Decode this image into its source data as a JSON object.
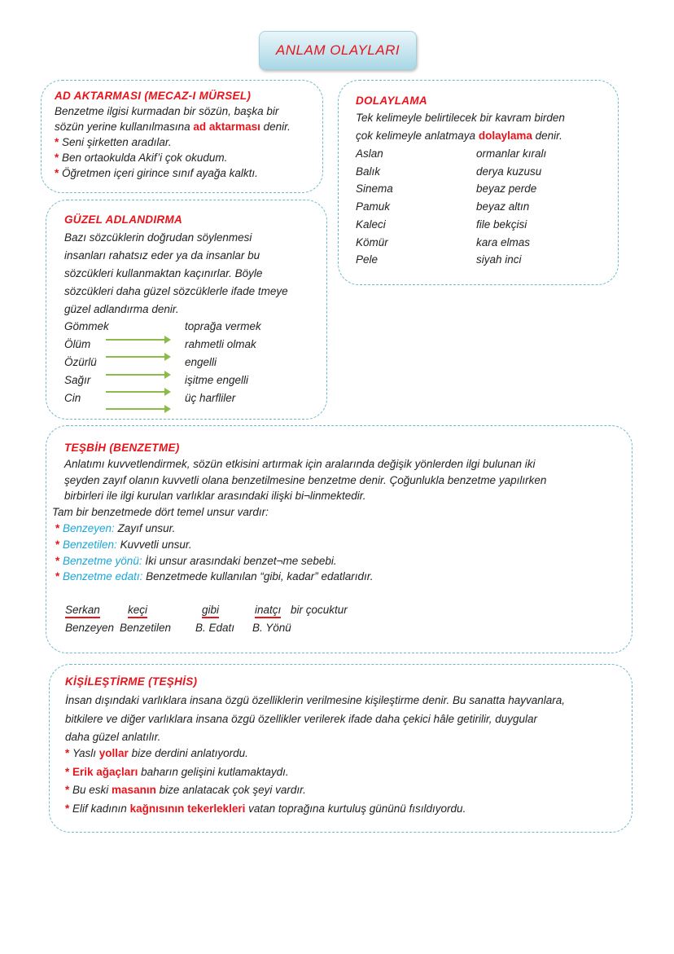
{
  "title": "ANLAM OLAYLARI",
  "ad_aktarmasi": {
    "heading": "AD AKTARMASI (MECAZ-I MÜRSEL)",
    "line1": "Benzetme ilgisi kurmadan bir sözün, başka bir",
    "line2_pre": "sözün yerine kullanılmasına ",
    "line2_hl": "ad aktarması",
    "line2_post": " denir.",
    "examples": [
      "Seni şirketten aradılar.",
      "Ben ortaokulda Akif’i çok okudum.",
      "Öğretmen içeri girince sınıf  ayağa kalktı."
    ]
  },
  "dolaylama": {
    "heading": "DOLAYLAMA",
    "line1": "Tek kelimeyle belirtilecek bir kavram birden",
    "line2_pre": "çok kelimeyle anlatmaya ",
    "line2_hl": "dolaylama",
    "line2_post": " denir.",
    "pairs": [
      [
        "Aslan",
        "ormanlar kıralı"
      ],
      [
        "Balık",
        "derya kuzusu"
      ],
      [
        "Sinema",
        "beyaz perde"
      ],
      [
        "Pamuk",
        "beyaz altın"
      ],
      [
        "Kaleci",
        "file bekçisi"
      ],
      [
        "Kömür",
        "kara elmas"
      ],
      [
        "Pele",
        "siyah inci"
      ]
    ]
  },
  "guzel_adlandirma": {
    "heading": "GÜZEL ADLANDIRMA",
    "lines": [
      "Bazı sözcüklerin doğrudan söylenmesi",
      "insanları rahatsız eder ya da insanlar bu",
      "sözcükleri kullanmaktan kaçınırlar. Böyle",
      "sözcükleri daha güzel sözcüklerle ifade tmeye",
      "güzel adlandırma denir."
    ],
    "pairs": [
      [
        "Gömmek",
        "toprağa vermek"
      ],
      [
        "Ölüm",
        "rahmetli olmak"
      ],
      [
        "Özürlü",
        "engelli"
      ],
      [
        "Sağır",
        "işitme engelli"
      ],
      [
        "Cin",
        "üç harfliler"
      ]
    ],
    "arrow_color": "#8dbb4a"
  },
  "tesbih": {
    "heading": "TEŞBİH (BENZETME)",
    "lines": [
      "Anlatımı kuvvetlendirmek, sözün etkisini artırmak için aralarında değişik yönlerden ilgi bulunan iki",
      "şeyden zayıf olanın kuvvetli olana benzetilmesine benzetme denir. Çoğunlukla benzetme yapılırken",
      "birbirleri ile ilgi kurulan varlıklar arasındaki ilişki bi¬linmektedir."
    ],
    "intro": "Tam bir benzetmede dört temel unsur vardır:",
    "items": [
      {
        "term": "Benzeyen:",
        "text": " Zayıf unsur."
      },
      {
        "term": "Benzetilen:",
        "text": " Kuvvetli unsur."
      },
      {
        "term": "Benzetme yönü:",
        "text": " İki unsur arasındaki benzet¬me sebebi."
      },
      {
        "term": "Benzetme edatı:",
        "text": " Benzetmede kullanılan “gibi, kadar” edatlarıdır."
      }
    ],
    "example_words": [
      "Serkan",
      "keçi",
      "gibi",
      "inatçı"
    ],
    "example_tail": "bir çocuktur",
    "example_labels": [
      "Benzeyen",
      "Benzetilen",
      "B. Edatı",
      "B. Yönü"
    ]
  },
  "kisilestirme": {
    "heading": "KİŞİLEŞTİRME (TEŞHİS)",
    "lines": [
      "İnsan dışındaki varlıklara insana özgü özelliklerin verilmesine kişileştirme denir. Bu sanatta hayvanlara,",
      "bitkilere ve diğer varlıklara insana özgü özellikler verilerek ifade daha çekici hâle getirilir, duygular",
      "daha güzel anlatılır."
    ],
    "examples": [
      {
        "pre": "Yaslı ",
        "hl": "yollar",
        "post": " bize derdini anlatıyordu."
      },
      {
        "pre": "",
        "hl": "Erik  ağaçları",
        "post": " baharın gelişini kutlamaktaydı."
      },
      {
        "pre": "Bu eski ",
        "hl": "masanın",
        "post": " bize anlatacak çok şeyi vardır."
      },
      {
        "pre": "Elif kadının ",
        "hl": "kağnısının tekerlekleri",
        "post": " vatan toprağına kurtuluş gününü fısıldıyordu."
      }
    ]
  },
  "colors": {
    "accent_red": "#e8141c",
    "term_blue": "#1aa6d8",
    "border": "#6fb8cc"
  }
}
